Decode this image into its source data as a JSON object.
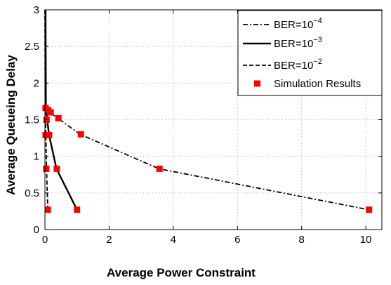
{
  "chart_data": {
    "type": "line",
    "xlabel": "Average Power Constraint",
    "ylabel": "Average Queueing Delay",
    "xlim": [
      0,
      10.5
    ],
    "ylim": [
      0,
      3
    ],
    "x_ticks": [
      "0",
      "2",
      "4",
      "6",
      "8",
      "10"
    ],
    "y_ticks": [
      "0",
      "0.5",
      "1",
      "1.5",
      "2",
      "2.5",
      "3"
    ],
    "grid": true,
    "legend_position": "top-right",
    "legend": [
      {
        "base": "BER=10",
        "exp": "−4",
        "style": "dash-dot"
      },
      {
        "base": "BER=10",
        "exp": "−3",
        "style": "solid"
      },
      {
        "base": "BER=10",
        "exp": "−2",
        "style": "dashed"
      },
      {
        "label": "Simulation Results",
        "style": "marker"
      }
    ],
    "series": [
      {
        "style": "dash-dot",
        "color": "#000000",
        "points": [
          [
            0.02,
            3.0
          ],
          [
            0.03,
            1.66
          ],
          [
            0.05,
            1.65
          ],
          [
            0.15,
            1.6
          ],
          [
            0.4,
            1.52
          ],
          [
            1.1,
            1.3
          ],
          [
            3.55,
            0.83
          ],
          [
            10.1,
            0.27
          ]
        ]
      },
      {
        "style": "solid",
        "color": "#000000",
        "points": [
          [
            0.02,
            3.0
          ],
          [
            0.03,
            1.66
          ],
          [
            0.07,
            1.5
          ],
          [
            0.13,
            1.29
          ],
          [
            0.36,
            0.83
          ],
          [
            1.0,
            0.27
          ]
        ]
      },
      {
        "style": "dashed",
        "color": "#000000",
        "points": [
          [
            0.0,
            3.0
          ],
          [
            0.01,
            1.66
          ],
          [
            0.02,
            1.5
          ],
          [
            0.03,
            1.29
          ],
          [
            0.05,
            0.83
          ],
          [
            0.09,
            0.27
          ]
        ]
      }
    ],
    "simulation_points": [
      [
        0.02,
        1.66
      ],
      [
        0.1,
        1.63
      ],
      [
        0.18,
        1.6
      ],
      [
        0.42,
        1.52
      ],
      [
        1.12,
        1.3
      ],
      [
        3.57,
        0.83
      ],
      [
        10.1,
        0.27
      ],
      [
        0.05,
        1.5
      ],
      [
        0.13,
        1.29
      ],
      [
        0.37,
        0.83
      ],
      [
        1.0,
        0.27
      ],
      [
        0.02,
        1.29
      ],
      [
        0.04,
        0.83
      ],
      [
        0.09,
        0.27
      ]
    ],
    "marker_color": "#ff0000"
  }
}
